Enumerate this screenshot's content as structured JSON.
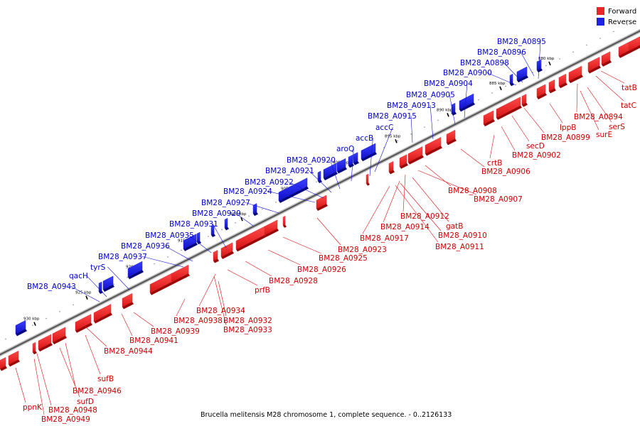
{
  "caption": "Brucella melitensis M28 chromosome 1, complete sequence. - 0..2126133",
  "legend": {
    "forward_label": "Forward",
    "reverse_label": "Reverse",
    "forward_color": "#e8262a",
    "reverse_color": "#1c22e0"
  },
  "ticks": [
    "880 kbp",
    "885 kbp",
    "890 kbp",
    "895 kbp",
    "900 kbp",
    "905 kbp",
    "910 kbp",
    "915 kbp",
    "920 kbp",
    "925 kbp",
    "930 kbp"
  ],
  "forward_labels": [
    "tatB",
    "tatC",
    "BM28_A0894",
    "serS",
    "surE",
    "lppB",
    "BM28_A0899",
    "secD",
    "BM28_A0902",
    "crtB",
    "BM28_A0906",
    "BM28_A0908",
    "BM28_A0907",
    "BM28_A0912",
    "gatB",
    "BM28_A0914",
    "BM28_A0910",
    "BM28_A0917",
    "BM28_A0911",
    "BM28_A0923",
    "BM28_A0925",
    "BM28_A0926",
    "BM28_A0928",
    "prfB",
    "BM28_A0934",
    "BM28_A0938",
    "BM28_A0932",
    "BM28_A0933",
    "BM28_A0939",
    "BM28_A0941",
    "BM28_A0944",
    "sufB",
    "BM28_A0946",
    "sufD",
    "ppnK",
    "BM28_A0948",
    "BM28_A0949"
  ],
  "reverse_labels": [
    "BM28_A0895",
    "BM28_A0896",
    "BM28_A0898",
    "BM28_A0900",
    "BM28_A0904",
    "BM28_A0905",
    "BM28_A0913",
    "BM28_A0915",
    "accC",
    "accB",
    "aroQ",
    "BM28_A0920",
    "BM28_A0921",
    "BM28_A0922",
    "BM28_A0924",
    "BM28_A0927",
    "BM28_A0929",
    "BM28_A0931",
    "BM28_A0935",
    "BM28_A0936",
    "BM28_A0937",
    "tyrS",
    "qacH",
    "BM28_A0943"
  ]
}
